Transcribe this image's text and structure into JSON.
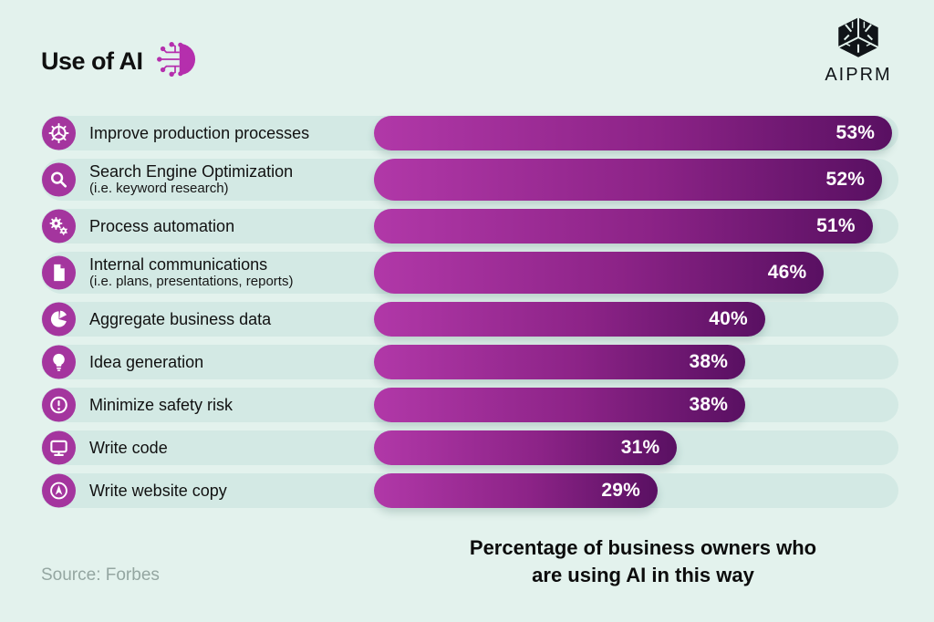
{
  "header": {
    "title": "Use of AI",
    "brand": "AIPRM"
  },
  "footer": {
    "source": "Source: Forbes",
    "caption_line1": "Percentage of business owners who",
    "caption_line2": "are using AI in this way"
  },
  "colors": {
    "page_background": "#e3f2ed",
    "track": "#d3e9e4",
    "bar_gradient_start": "#b138a8",
    "bar_gradient_end": "#591062",
    "icon_circle": "#a4359e",
    "title_icon": "#b52fad",
    "value_text": "#ffffff",
    "source_text": "#94a6a1",
    "text": "#101010"
  },
  "chart_data": {
    "type": "bar",
    "orientation": "horizontal",
    "title": "Use of AI",
    "caption": "Percentage of business owners who are using AI in this way",
    "source": "Source: Forbes",
    "value_suffix": "%",
    "xlim": [
      0,
      53
    ],
    "grid": false,
    "max_value_scale": 53,
    "categories": [
      {
        "label": "Improve production processes",
        "sublabel": "",
        "icon": "gear-production-icon"
      },
      {
        "label": "Search Engine Optimization",
        "sublabel": "(i.e. keyword research)",
        "icon": "search-icon"
      },
      {
        "label": "Process automation",
        "sublabel": "",
        "icon": "gears-automation-icon"
      },
      {
        "label": "Internal communications",
        "sublabel": "(i.e. plans, presentations, reports)",
        "icon": "document-icon"
      },
      {
        "label": "Aggregate business data",
        "sublabel": "",
        "icon": "pie-chart-icon"
      },
      {
        "label": "Idea generation",
        "sublabel": "",
        "icon": "light-bulb-icon"
      },
      {
        "label": "Minimize safety risk",
        "sublabel": "",
        "icon": "alert-icon"
      },
      {
        "label": "Write code",
        "sublabel": "",
        "icon": "monitor-icon"
      },
      {
        "label": "Write website copy",
        "sublabel": "",
        "icon": "navigation-arrow-icon"
      }
    ],
    "values": [
      53,
      52,
      51,
      46,
      40,
      38,
      38,
      31,
      29
    ]
  }
}
